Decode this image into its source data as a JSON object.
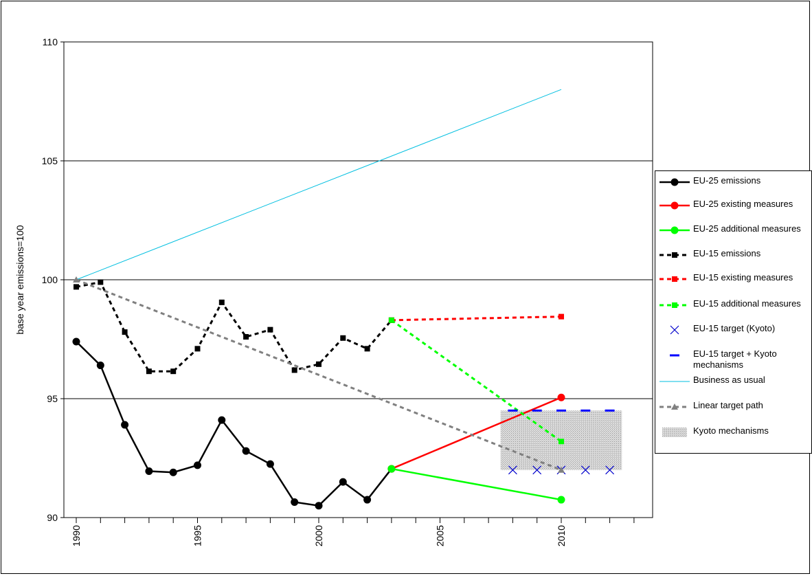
{
  "chart_data": {
    "type": "line",
    "title": "",
    "xlabel": "",
    "ylabel": "base year emissions=100",
    "xlim": [
      1990,
      2013
    ],
    "ylim": [
      90,
      110
    ],
    "x_ticks": [
      1990,
      1995,
      2000,
      2005,
      2010
    ],
    "y_ticks": [
      90,
      95,
      100,
      105,
      110
    ],
    "grid": "horizontal major lines",
    "legend_position": "right",
    "series": [
      {
        "name": "EU-25 emissions",
        "style": "line-circle",
        "color": "#000000",
        "dash": false,
        "points": [
          [
            1990,
            97.4
          ],
          [
            1991,
            96.4
          ],
          [
            1992,
            93.9
          ],
          [
            1993,
            91.95
          ],
          [
            1994,
            91.9
          ],
          [
            1995,
            92.2
          ],
          [
            1996,
            94.1
          ],
          [
            1997,
            92.8
          ],
          [
            1998,
            92.25
          ],
          [
            1999,
            90.65
          ],
          [
            2000,
            90.5
          ],
          [
            2001,
            91.5
          ],
          [
            2002,
            90.75
          ],
          [
            2003,
            92.05
          ]
        ]
      },
      {
        "name": "EU-25 existing measures",
        "style": "line-circle",
        "color": "#ff0000",
        "dash": false,
        "points": [
          [
            2003,
            92.05
          ],
          [
            2010,
            95.05
          ]
        ]
      },
      {
        "name": "EU-25 additional measures",
        "style": "line-circle",
        "color": "#00ff00",
        "dash": false,
        "points": [
          [
            2003,
            92.05
          ],
          [
            2010,
            90.75
          ]
        ]
      },
      {
        "name": "EU-15 emissions",
        "style": "dash-square",
        "color": "#000000",
        "dash": true,
        "points": [
          [
            1990,
            99.7
          ],
          [
            1991,
            99.9
          ],
          [
            1992,
            97.8
          ],
          [
            1993,
            96.15
          ],
          [
            1994,
            96.15
          ],
          [
            1995,
            97.1
          ],
          [
            1996,
            99.05
          ],
          [
            1997,
            97.6
          ],
          [
            1998,
            97.9
          ],
          [
            1999,
            96.2
          ],
          [
            2000,
            96.45
          ],
          [
            2001,
            97.55
          ],
          [
            2002,
            97.1
          ],
          [
            2003,
            98.3
          ]
        ]
      },
      {
        "name": "EU-15 existing measures",
        "style": "dash-square",
        "color": "#ff0000",
        "dash": true,
        "points": [
          [
            2003,
            98.3
          ],
          [
            2010,
            98.45
          ]
        ]
      },
      {
        "name": "EU-15 additional measures",
        "style": "dash-square",
        "color": "#00ff00",
        "dash": true,
        "points": [
          [
            2003,
            98.3
          ],
          [
            2010,
            93.2
          ]
        ]
      },
      {
        "name": "EU-15 target (Kyoto)",
        "style": "x-marker",
        "color": "#0000cc",
        "dash": false,
        "points": [
          [
            2008,
            92.0
          ],
          [
            2009,
            92.0
          ],
          [
            2010,
            92.0
          ],
          [
            2011,
            92.0
          ],
          [
            2012,
            92.0
          ]
        ]
      },
      {
        "name": "EU-15 target + Kyoto mechanisms",
        "style": "dash-marker",
        "color": "#0000ff",
        "dash": false,
        "points": [
          [
            2008,
            94.5
          ],
          [
            2009,
            94.5
          ],
          [
            2010,
            94.5
          ],
          [
            2011,
            94.5
          ],
          [
            2012,
            94.5
          ]
        ]
      },
      {
        "name": "Business as usual",
        "style": "thin-line",
        "color": "#00bfe0",
        "dash": false,
        "points": [
          [
            1990,
            100.0
          ],
          [
            2010,
            108.0
          ]
        ]
      },
      {
        "name": "Linear target path",
        "style": "dash-triangle",
        "color": "#808080",
        "dash": true,
        "points": [
          [
            1990,
            100.0
          ],
          [
            2010,
            92.0
          ]
        ]
      }
    ],
    "area": {
      "name": "Kyoto mechanisms",
      "color": "#c8c8c8",
      "x": [
        2007.5,
        2012.5
      ],
      "y": [
        92.0,
        94.5
      ]
    },
    "legend": [
      "EU-25 emissions",
      "EU-25 existing measures",
      "EU-25 additional measures",
      "EU-15 emissions",
      "EU-15 existing measures",
      "EU-15 additional measures",
      "EU-15 target (Kyoto)",
      "EU-15 target + Kyoto mechanisms",
      "Business as usual",
      "Linear target path",
      "Kyoto mechanisms"
    ]
  }
}
